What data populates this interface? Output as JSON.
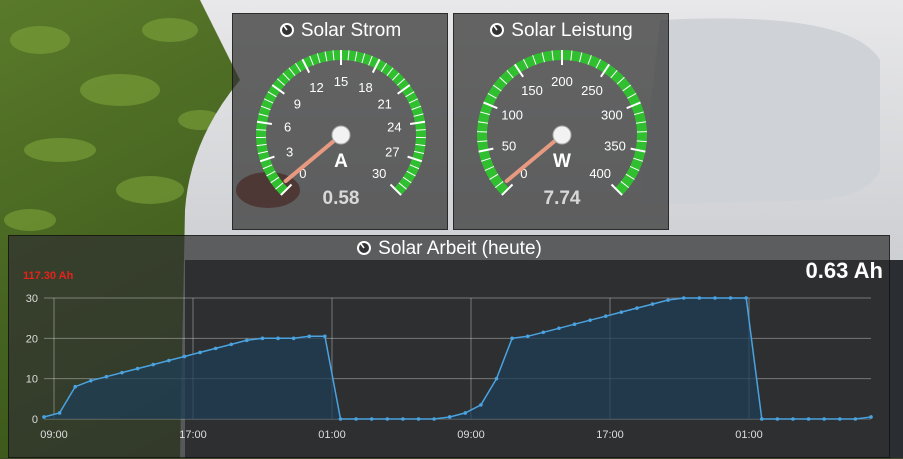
{
  "gauges": [
    {
      "title": "Solar Strom",
      "unit": "A",
      "value_text": "0.58",
      "value": 0.58,
      "min": 0,
      "max": 30,
      "ticks": [
        "0",
        "3",
        "6",
        "9",
        "12",
        "15",
        "18",
        "21",
        "24",
        "27",
        "30"
      ],
      "icon": "gauge-icon"
    },
    {
      "title": "Solar Leistung",
      "unit": "W",
      "value_text": "7.74",
      "value": 7.74,
      "min": 0,
      "max": 400,
      "ticks": [
        "0",
        "50",
        "100",
        "150",
        "200",
        "250",
        "300",
        "350",
        "400"
      ],
      "icon": "gauge-icon"
    }
  ],
  "colors": {
    "gauge_band": "#2fbf2f",
    "needle": "#e89a80",
    "line": "#4aa3df",
    "area": "#1f3d55",
    "max_label": "#e8221b"
  },
  "chart_panel": {
    "title": "Solar Arbeit (heute)",
    "current_value": "0.63 Ah",
    "max_label": "117.30 Ah",
    "icon": "gauge-icon"
  },
  "chart_data": {
    "type": "area",
    "title": "Solar Arbeit (heute)",
    "ylim": [
      0,
      30
    ],
    "y_ticks": [
      "0",
      "10",
      "20",
      "30"
    ],
    "x_ticks": [
      "09:00",
      "17:00",
      "01:00",
      "09:00",
      "17:00",
      "01:00"
    ],
    "grid": true,
    "series": [
      {
        "values": [
          [
            0,
            0.5
          ],
          [
            1,
            1.5
          ],
          [
            2,
            8
          ],
          [
            3,
            9.5
          ],
          [
            4,
            10.5
          ],
          [
            5,
            11.5
          ],
          [
            6,
            12.5
          ],
          [
            7,
            13.5
          ],
          [
            8,
            14.5
          ],
          [
            9,
            15.5
          ],
          [
            10,
            16.5
          ],
          [
            11,
            17.5
          ],
          [
            12,
            18.5
          ],
          [
            13,
            19.5
          ],
          [
            14,
            20
          ],
          [
            15,
            20
          ],
          [
            16,
            20
          ],
          [
            17,
            20.5
          ],
          [
            18,
            20.5
          ],
          [
            19,
            0
          ],
          [
            20,
            0
          ],
          [
            21,
            0
          ],
          [
            22,
            0
          ],
          [
            23,
            0
          ],
          [
            24,
            0
          ],
          [
            25,
            0
          ],
          [
            26,
            0.5
          ],
          [
            27,
            1.5
          ],
          [
            28,
            3.5
          ],
          [
            29,
            10
          ],
          [
            30,
            20
          ],
          [
            31,
            20.5
          ],
          [
            32,
            21.5
          ],
          [
            33,
            22.5
          ],
          [
            34,
            23.5
          ],
          [
            35,
            24.5
          ],
          [
            36,
            25.5
          ],
          [
            37,
            26.5
          ],
          [
            38,
            27.5
          ],
          [
            39,
            28.5
          ],
          [
            40,
            29.5
          ],
          [
            41,
            30
          ],
          [
            42,
            30
          ],
          [
            43,
            30
          ],
          [
            44,
            30
          ],
          [
            45,
            30
          ],
          [
            46,
            0
          ],
          [
            47,
            0
          ],
          [
            48,
            0
          ],
          [
            49,
            0
          ],
          [
            50,
            0
          ],
          [
            51,
            0
          ],
          [
            52,
            0
          ],
          [
            53,
            0.5
          ]
        ]
      }
    ]
  }
}
